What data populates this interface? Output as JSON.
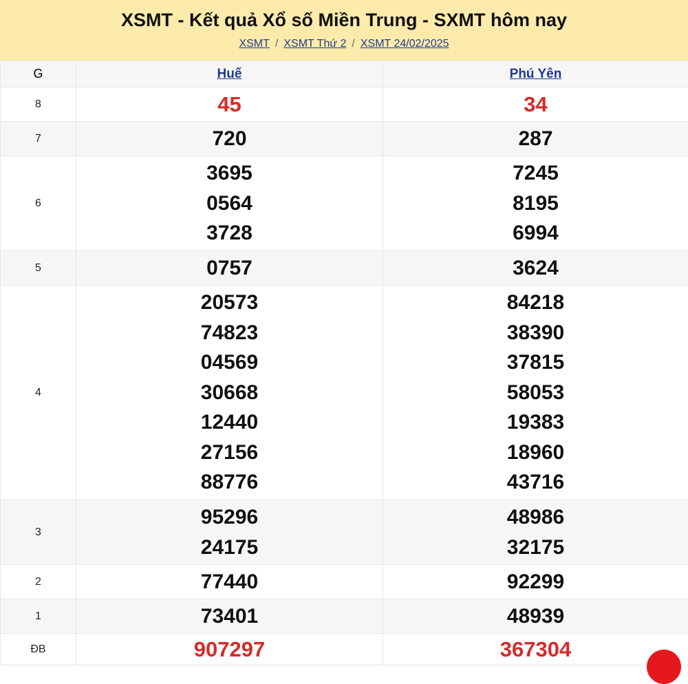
{
  "header": {
    "title": "XSMT - Kết quả Xổ số Miền Trung - SXMT hôm nay",
    "breadcrumb": [
      "XSMT",
      "XSMT Thứ 2",
      "XSMT 24/02/2025"
    ],
    "separator": "/"
  },
  "table": {
    "columns": [
      "G",
      "Huế",
      "Phú Yên"
    ],
    "rows": [
      {
        "prize": "8",
        "hue": [
          "45"
        ],
        "phuyen": [
          "34"
        ],
        "highlight": true
      },
      {
        "prize": "7",
        "hue": [
          "720"
        ],
        "phuyen": [
          "287"
        ]
      },
      {
        "prize": "6",
        "hue": [
          "3695",
          "0564",
          "3728"
        ],
        "phuyen": [
          "7245",
          "8195",
          "6994"
        ]
      },
      {
        "prize": "5",
        "hue": [
          "0757"
        ],
        "phuyen": [
          "3624"
        ]
      },
      {
        "prize": "4",
        "hue": [
          "20573",
          "74823",
          "04569",
          "30668",
          "12440",
          "27156",
          "88776"
        ],
        "phuyen": [
          "84218",
          "38390",
          "37815",
          "58053",
          "19383",
          "18960",
          "43716"
        ]
      },
      {
        "prize": "3",
        "hue": [
          "95296",
          "24175"
        ],
        "phuyen": [
          "48986",
          "32175"
        ]
      },
      {
        "prize": "2",
        "hue": [
          "77440"
        ],
        "phuyen": [
          "92299"
        ]
      },
      {
        "prize": "1",
        "hue": [
          "73401"
        ],
        "phuyen": [
          "48939"
        ]
      },
      {
        "prize": "ĐB",
        "hue": [
          "907297"
        ],
        "phuyen": [
          "367304"
        ],
        "highlight": true
      }
    ]
  },
  "colors": {
    "header_bg": "#fcebab",
    "accent_red": "#d42b2b",
    "link": "#1f3a8c"
  }
}
